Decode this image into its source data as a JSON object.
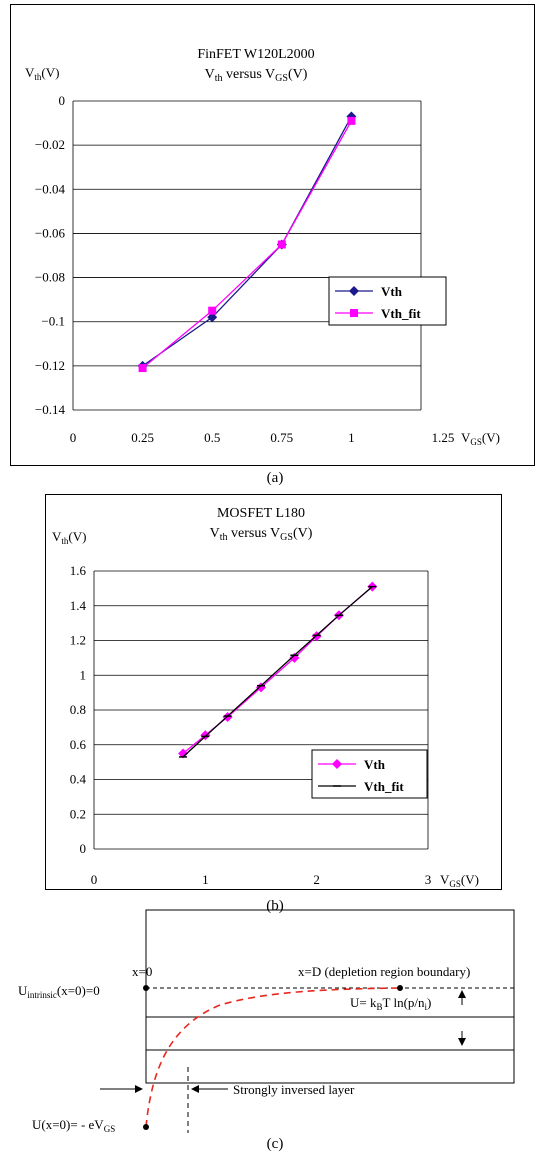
{
  "chart_data": [
    {
      "panel": "(a)",
      "type": "line",
      "title": "FinFET W120L2000",
      "subtitle_main": "V",
      "subtitle_sub": "th",
      "subtitle_mid": " versus V",
      "subtitle_sub2": "GS",
      "subtitle_end": "(V)",
      "ylabel_main": "V",
      "ylabel_sub": "th",
      "ylabel_end": "(V)",
      "xlabel_main": "V",
      "xlabel_sub": "GS",
      "xlabel_end": "(V)",
      "xlim": [
        0,
        1.25
      ],
      "ylim": [
        -0.14,
        0
      ],
      "x_ticks": [
        0,
        0.25,
        0.5,
        0.75,
        1,
        1.25
      ],
      "x_tick_labels": [
        "0",
        "0.25",
        "0.5",
        "0.75",
        "1",
        "1.25"
      ],
      "y_ticks": [
        0,
        -0.02,
        -0.04,
        -0.06,
        -0.08,
        -0.1,
        -0.12,
        -0.14
      ],
      "y_tick_labels": [
        "0",
        "−0.02",
        "−0.04",
        "−0.06",
        "−0.08",
        "−0.1",
        "−0.12",
        "−0.14"
      ],
      "grid": "horizontal",
      "legend_position": "right",
      "series": [
        {
          "name": "Vth",
          "color": "#1a1a8c",
          "marker": "diamond",
          "x": [
            0.25,
            0.5,
            0.75,
            1.0
          ],
          "y": [
            -0.12,
            -0.098,
            -0.065,
            -0.007
          ]
        },
        {
          "name": "Vth_fit",
          "color": "#ff00ff",
          "marker": "square",
          "x": [
            0.25,
            0.5,
            0.75,
            1.0
          ],
          "y": [
            -0.121,
            -0.095,
            -0.065,
            -0.009
          ]
        }
      ]
    },
    {
      "panel": "(b)",
      "type": "line",
      "title": "MOSFET L180",
      "subtitle_main": "V",
      "subtitle_sub": "th",
      "subtitle_mid": " versus V",
      "subtitle_sub2": "GS",
      "subtitle_end": "(V)",
      "ylabel_main": "V",
      "ylabel_sub": "th",
      "ylabel_end": "(V)",
      "xlabel_main": "V",
      "xlabel_sub": "GS",
      "xlabel_end": "(V)",
      "xlim": [
        0,
        3
      ],
      "ylim": [
        0,
        1.6
      ],
      "x_ticks": [
        0,
        1,
        2,
        3
      ],
      "x_tick_labels": [
        "0",
        "1",
        "2",
        "3"
      ],
      "y_ticks": [
        0,
        0.2,
        0.4,
        0.6,
        0.8,
        1,
        1.2,
        1.4,
        1.6
      ],
      "y_tick_labels": [
        "0",
        "0.2",
        "0.4",
        "0.6",
        "0.8",
        "1",
        "1.2",
        "1.4",
        "1.6"
      ],
      "grid": "horizontal",
      "legend_position": "bottom-right",
      "series": [
        {
          "name": "Vth",
          "color": "#ff00ff",
          "marker": "diamond",
          "x": [
            0.8,
            1.0,
            1.2,
            1.5,
            1.8,
            2.0,
            2.2,
            2.5
          ],
          "y": [
            0.55,
            0.655,
            0.76,
            0.93,
            1.1,
            1.225,
            1.345,
            1.51
          ]
        },
        {
          "name": "Vth_fit",
          "color": "#000000",
          "marker": "dash",
          "x": [
            0.8,
            1.0,
            1.2,
            1.5,
            1.8,
            2.0,
            2.2,
            2.5
          ],
          "y": [
            0.53,
            0.648,
            0.765,
            0.94,
            1.115,
            1.23,
            1.345,
            1.51
          ]
        }
      ]
    }
  ],
  "diagram_c": {
    "caption": "(c)",
    "x0_label": "x=0",
    "xD_label": "x=D (depletion region boundary)",
    "u_intrinsic_main": "U",
    "u_intrinsic_sub": "intrinsic",
    "u_intrinsic_end": "(x=0)=0",
    "u_eq_prefix": "U= k",
    "u_eq_sub1": "B",
    "u_eq_mid": "T ln(p/n",
    "u_eq_sub2": "i",
    "u_eq_end": ")",
    "inversed_label": "Strongly inversed layer",
    "u_x0_main": "U(x=0)= - eV",
    "u_x0_sub": "GS",
    "curve_color": "#e8281e"
  }
}
